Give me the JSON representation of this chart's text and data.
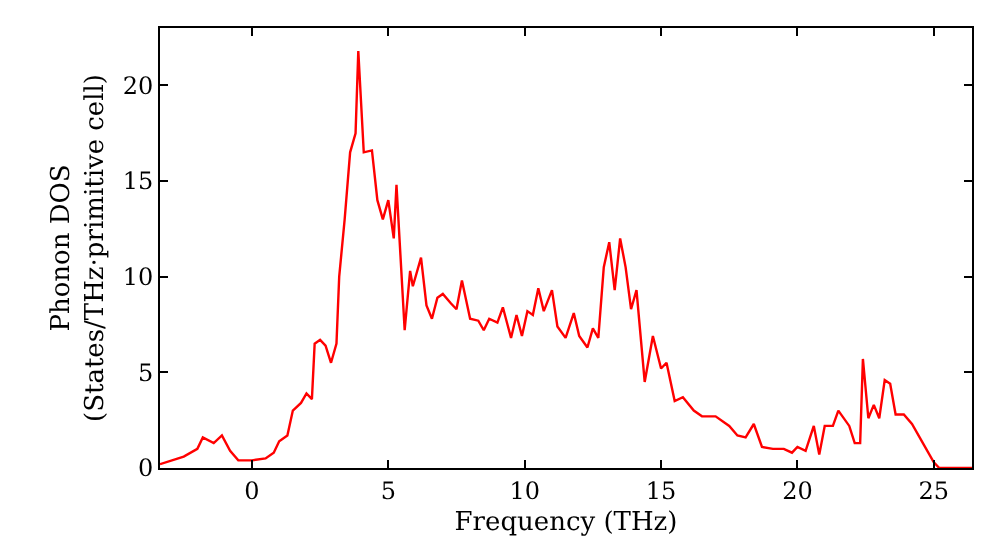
{
  "chart_data": {
    "type": "line",
    "xlabel": "Frequency (THz)",
    "ylabel": "Phonon DOS\n(States/THz·primitive cell)",
    "x": [
      -3.37,
      -2.5,
      -2,
      -1.8,
      -1.4,
      -1.1,
      -0.8,
      -0.5,
      0,
      0.5,
      0.8,
      1.0,
      1.3,
      1.5,
      1.8,
      2.0,
      2.2,
      2.3,
      2.5,
      2.7,
      2.9,
      3.1,
      3.2,
      3.4,
      3.6,
      3.8,
      3.9,
      4.1,
      4.4,
      4.6,
      4.8,
      5.0,
      5.2,
      5.3,
      5.6,
      5.8,
      5.9,
      6.2,
      6.4,
      6.6,
      6.8,
      7.0,
      7.3,
      7.5,
      7.7,
      8.0,
      8.3,
      8.5,
      8.7,
      9.0,
      9.2,
      9.5,
      9.7,
      9.9,
      10.1,
      10.3,
      10.5,
      10.7,
      11.0,
      11.2,
      11.5,
      11.8,
      12.0,
      12.3,
      12.5,
      12.7,
      12.9,
      13.1,
      13.3,
      13.5,
      13.7,
      13.9,
      14.1,
      14.4,
      14.7,
      15.0,
      15.2,
      15.5,
      15.8,
      16.2,
      16.5,
      17.0,
      17.5,
      17.8,
      18.1,
      18.4,
      18.7,
      19.1,
      19.5,
      19.8,
      20.0,
      20.3,
      20.6,
      20.8,
      21.0,
      21.3,
      21.5,
      21.9,
      22.1,
      22.3,
      22.4,
      22.6,
      22.8,
      23.0,
      23.2,
      23.4,
      23.6,
      23.9,
      24.2,
      24.6,
      25.0,
      25.2,
      26.4
    ],
    "series": [
      {
        "color": "#ff0000",
        "values": [
          0.2,
          0.6,
          1.0,
          1.6,
          1.3,
          1.7,
          0.9,
          0.4,
          0.4,
          0.5,
          0.8,
          1.4,
          1.7,
          3.0,
          3.4,
          3.9,
          3.6,
          6.5,
          6.7,
          6.4,
          5.5,
          6.5,
          10,
          13,
          16.5,
          17.5,
          21.8,
          16.5,
          16.6,
          14,
          13,
          14,
          12,
          14.8,
          7.2,
          10.3,
          9.5,
          11,
          8.5,
          7.8,
          8.9,
          9.1,
          8.6,
          8.3,
          9.8,
          7.8,
          7.7,
          7.2,
          7.8,
          7.6,
          8.4,
          6.8,
          8.0,
          6.9,
          8.2,
          8.0,
          9.4,
          8.2,
          9.3,
          7.4,
          6.8,
          8.1,
          6.9,
          6.3,
          7.3,
          6.8,
          10.5,
          11.8,
          9.3,
          12,
          10.5,
          8.3,
          9.3,
          4.5,
          6.9,
          5.2,
          5.5,
          3.5,
          3.7,
          3.0,
          2.7,
          2.7,
          2.2,
          1.7,
          1.6,
          2.3,
          1.1,
          1.0,
          1.0,
          0.8,
          1.1,
          0.9,
          2.2,
          0.7,
          2.2,
          2.2,
          3.0,
          2.2,
          1.3,
          1.3,
          5.7,
          2.6,
          3.3,
          2.6,
          4.6,
          4.4,
          2.8,
          2.8,
          2.3,
          1.3,
          0.3,
          0,
          0
        ]
      }
    ],
    "xlim": [
      -3.37,
      26.4
    ],
    "xticks": [
      0,
      5,
      10,
      15,
      20,
      25
    ],
    "ylim": [
      0,
      23
    ],
    "yticks": [
      0,
      5,
      10,
      15,
      20
    ],
    "grid": false,
    "legend": false,
    "marker": "none",
    "line_style": "solid"
  }
}
